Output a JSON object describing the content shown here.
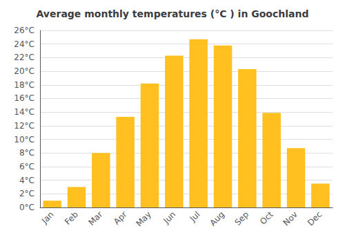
{
  "chart_data": {
    "type": "bar",
    "title": "Average monthly temperatures (°C ) in Goochland",
    "categories": [
      "Jan",
      "Feb",
      "Mar",
      "Apr",
      "May",
      "Jun",
      "Jul",
      "Aug",
      "Sep",
      "Oct",
      "Nov",
      "Dec"
    ],
    "values": [
      1.0,
      3.0,
      8.0,
      13.3,
      18.2,
      22.3,
      24.7,
      23.8,
      20.3,
      13.9,
      8.7,
      3.5
    ],
    "color": "#FFC020",
    "ylim": [
      0,
      26
    ],
    "yticks": [
      {
        "value": 0,
        "label": "0°C"
      },
      {
        "value": 2,
        "label": "2°C"
      },
      {
        "value": 4,
        "label": "4°C"
      },
      {
        "value": 6,
        "label": "6°C"
      },
      {
        "value": 8,
        "label": "8°C"
      },
      {
        "value": 10,
        "label": "10°C"
      },
      {
        "value": 12,
        "label": "12°C"
      },
      {
        "value": 14,
        "label": "14°C"
      },
      {
        "value": 16,
        "label": "16°C"
      },
      {
        "value": 18,
        "label": "18°C"
      },
      {
        "value": 20,
        "label": "20°C"
      },
      {
        "value": 22,
        "label": "22°C"
      },
      {
        "value": 24,
        "label": "24°C"
      },
      {
        "value": 26,
        "label": "26°C"
      }
    ],
    "grid": true
  }
}
